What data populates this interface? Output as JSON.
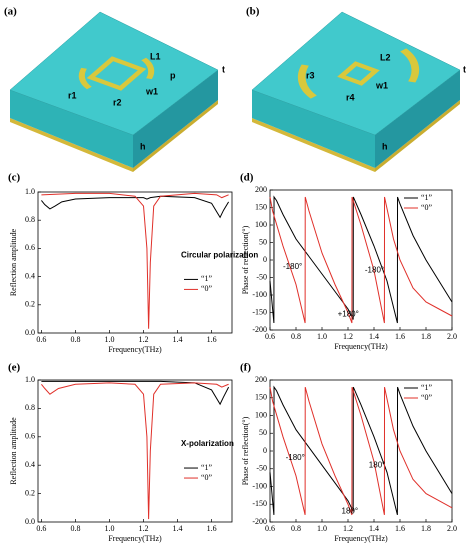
{
  "diagrams": [
    {
      "label": "(a)",
      "labels": [
        "r1",
        "r2",
        "L1",
        "w1",
        "p",
        "t",
        "h"
      ]
    },
    {
      "label": "(b)",
      "labels": [
        "r3",
        "r4",
        "L2",
        "w1",
        "t",
        "h"
      ]
    }
  ],
  "chart_data": [
    {
      "type": "line",
      "label": "(c)",
      "x_label": "Frequency(THz)",
      "y_label": "Reflection amplitude",
      "annotations": [
        "Circular polarization"
      ],
      "legend": "lower right",
      "xlim": [
        0.58,
        1.72
      ],
      "xticks": [
        0.6,
        0.8,
        {
          "value": 1,
          "label": "1.0"
        },
        1.2,
        1.4,
        1.6
      ],
      "ylim": [
        0,
        1
      ],
      "yticks": [
        {
          "value": 0,
          "label": "0.0"
        },
        0.2,
        0.4,
        0.6,
        0.8,
        {
          "value": 1,
          "label": "1.0"
        }
      ],
      "series": [
        {
          "name": "“1”",
          "color": "#000000",
          "x": [
            0.6,
            0.62,
            0.65,
            0.68,
            0.72,
            0.8,
            1.0,
            1.2,
            1.22,
            1.24,
            1.3,
            1.5,
            1.6,
            1.63,
            1.65,
            1.67,
            1.7
          ],
          "values": [
            0.94,
            0.91,
            0.88,
            0.9,
            0.93,
            0.95,
            0.96,
            0.96,
            0.95,
            0.96,
            0.97,
            0.96,
            0.92,
            0.86,
            0.82,
            0.87,
            0.93
          ]
        },
        {
          "name": "“0”",
          "color": "#e0302a",
          "x": [
            0.6,
            0.8,
            1.0,
            1.15,
            1.2,
            1.22,
            1.23,
            1.24,
            1.26,
            1.3,
            1.5,
            1.63,
            1.66,
            1.7
          ],
          "values": [
            0.98,
            0.99,
            0.99,
            0.97,
            0.9,
            0.6,
            0.03,
            0.5,
            0.9,
            0.97,
            0.99,
            0.98,
            0.96,
            0.98
          ]
        }
      ]
    },
    {
      "type": "line",
      "label": "(d)",
      "x_label": "Frequency(THz)",
      "y_label": "Phase of reflection(°)",
      "annotations": [
        "-180°",
        "+180°",
        "-180°"
      ],
      "legend": "upper right",
      "xlim": [
        0.6,
        2
      ],
      "xticks": [
        0.6,
        0.8,
        {
          "value": 1,
          "label": "1.0"
        },
        1.2,
        1.4,
        1.6,
        1.8,
        {
          "value": 2,
          "label": "2.0"
        }
      ],
      "ylim": [
        -200,
        200
      ],
      "yticks": [
        -200,
        -150,
        -100,
        -50,
        0,
        50,
        100,
        150,
        200
      ],
      "series": [
        {
          "name": "“1”",
          "color": "#000000",
          "x": [
            0.6,
            0.63,
            0.631,
            0.65,
            0.7,
            0.8,
            0.9,
            1.0,
            1.1,
            1.2,
            1.24,
            1.241,
            1.3,
            1.4,
            1.5,
            1.58,
            1.581,
            1.6,
            1.7,
            1.8,
            1.9,
            2.0
          ],
          "values": [
            -60,
            -180,
            180,
            170,
            130,
            60,
            10,
            -40,
            -90,
            -140,
            -170,
            180,
            130,
            40,
            -60,
            -180,
            180,
            160,
            70,
            0,
            -60,
            -120
          ]
        },
        {
          "name": "“0”",
          "color": "#e0302a",
          "x": [
            0.6,
            0.62,
            0.7,
            0.8,
            0.87,
            0.871,
            0.9,
            1.0,
            1.1,
            1.2,
            1.23,
            1.231,
            1.3,
            1.4,
            1.48,
            1.481,
            1.55,
            1.6,
            1.7,
            1.8,
            1.9,
            2.0
          ],
          "values": [
            180,
            140,
            40,
            -70,
            -180,
            180,
            140,
            20,
            -70,
            -150,
            -180,
            180,
            100,
            -30,
            -180,
            180,
            60,
            0,
            -80,
            -120,
            -140,
            -160
          ]
        }
      ]
    },
    {
      "type": "line",
      "label": "(e)",
      "x_label": "Frequency(THz)",
      "y_label": "Reflection amplitude",
      "annotations": [
        "X-polarization"
      ],
      "legend": "lower right",
      "xlim": [
        0.58,
        1.72
      ],
      "xticks": [
        0.6,
        0.8,
        {
          "value": 1,
          "label": "1.0"
        },
        1.2,
        1.4,
        1.6
      ],
      "ylim": [
        0,
        1
      ],
      "yticks": [
        {
          "value": 0,
          "label": "0.0"
        },
        0.2,
        0.4,
        0.6,
        0.8,
        {
          "value": 1,
          "label": "1.0"
        }
      ],
      "series": [
        {
          "name": "“1”",
          "color": "#000000",
          "x": [
            0.6,
            0.8,
            1.0,
            1.2,
            1.3,
            1.5,
            1.6,
            1.63,
            1.65,
            1.67,
            1.7
          ],
          "values": [
            0.99,
            0.99,
            0.99,
            0.99,
            0.99,
            0.98,
            0.93,
            0.87,
            0.83,
            0.88,
            0.95
          ]
        },
        {
          "name": "“0”",
          "color": "#e0302a",
          "x": [
            0.6,
            0.62,
            0.65,
            0.7,
            0.8,
            1.0,
            1.15,
            1.2,
            1.22,
            1.23,
            1.24,
            1.26,
            1.3,
            1.5,
            1.63,
            1.66,
            1.7
          ],
          "values": [
            0.97,
            0.94,
            0.9,
            0.94,
            0.97,
            0.98,
            0.97,
            0.9,
            0.6,
            0.02,
            0.5,
            0.9,
            0.97,
            0.98,
            0.97,
            0.95,
            0.97
          ]
        }
      ]
    },
    {
      "type": "line",
      "label": "(f)",
      "x_label": "Frequency(THz)",
      "y_label": "Phase of reflection(°)",
      "annotations": [
        "-180°",
        "180°",
        "180°"
      ],
      "legend": "upper right",
      "xlim": [
        0.6,
        2
      ],
      "xticks": [
        0.6,
        0.8,
        {
          "value": 1,
          "label": "1.0"
        },
        1.2,
        1.4,
        1.6,
        1.8,
        {
          "value": 2,
          "label": "2.0"
        }
      ],
      "ylim": [
        -200,
        200
      ],
      "yticks": [
        -200,
        -150,
        -100,
        -50,
        0,
        50,
        100,
        150,
        200
      ],
      "series": [
        {
          "name": "“1”",
          "color": "#000000",
          "x": [
            0.6,
            0.63,
            0.631,
            0.65,
            0.7,
            0.8,
            0.9,
            1.0,
            1.1,
            1.2,
            1.24,
            1.241,
            1.3,
            1.4,
            1.5,
            1.58,
            1.581,
            1.6,
            1.7,
            1.8,
            1.9,
            2.0
          ],
          "values": [
            -60,
            -180,
            180,
            170,
            130,
            60,
            10,
            -40,
            -90,
            -140,
            -170,
            180,
            130,
            40,
            -60,
            -180,
            180,
            160,
            70,
            0,
            -60,
            -120
          ]
        },
        {
          "name": "“0”",
          "color": "#e0302a",
          "x": [
            0.6,
            0.62,
            0.7,
            0.8,
            0.87,
            0.871,
            0.9,
            1.0,
            1.1,
            1.2,
            1.23,
            1.231,
            1.3,
            1.4,
            1.48,
            1.481,
            1.55,
            1.6,
            1.7,
            1.8,
            1.9,
            2.0
          ],
          "values": [
            180,
            140,
            40,
            -70,
            -180,
            180,
            140,
            20,
            -70,
            -150,
            -180,
            180,
            100,
            -30,
            -180,
            180,
            60,
            0,
            -80,
            -120,
            -140,
            -160
          ]
        }
      ]
    }
  ]
}
